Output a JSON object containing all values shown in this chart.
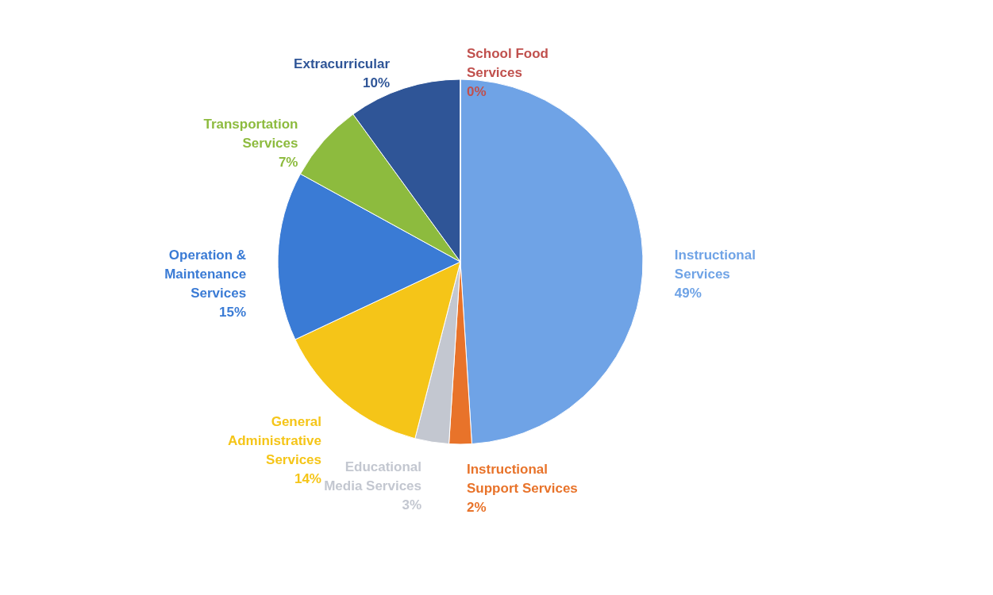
{
  "chart_data": {
    "type": "pie",
    "categories": [
      "Instructional Services",
      "Instructional Support Services",
      "Educational Media Services",
      "General Administrative Services",
      "Operation & Maintenance Services",
      "Transportation Services",
      "Extracurricular",
      "School Food Services"
    ],
    "values": [
      49,
      2,
      3,
      14,
      15,
      7,
      10,
      0
    ],
    "value_labels": [
      "49%",
      "2%",
      "3%",
      "14%",
      "15%",
      "7%",
      "10%",
      "0%"
    ],
    "colors": [
      "#6fa3e6",
      "#e8732a",
      "#c3c7d0",
      "#f5c518",
      "#3a7bd5",
      "#8dbb3e",
      "#2f5597",
      "#c0504d"
    ],
    "legend": false
  }
}
